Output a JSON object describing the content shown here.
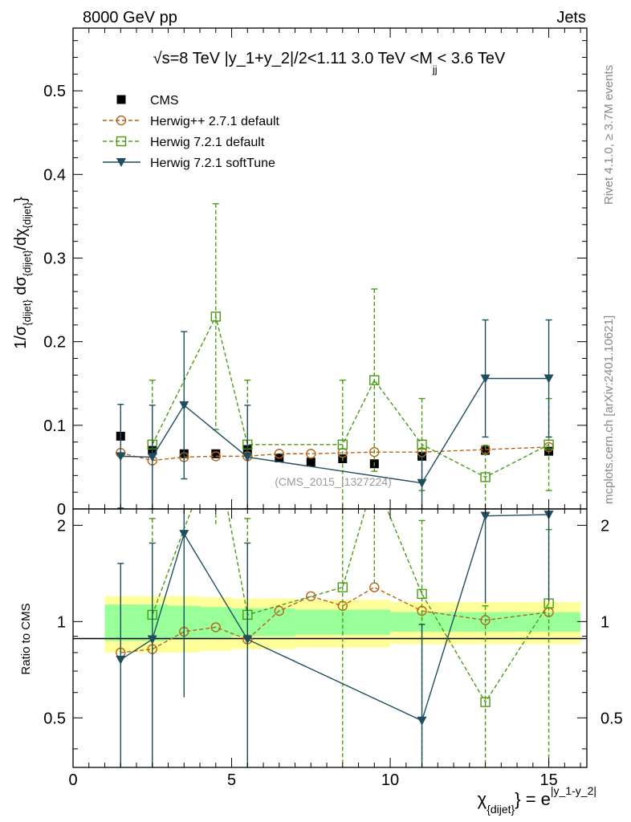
{
  "header": {
    "left": "8000 GeV pp",
    "right": "Jets",
    "side_rivet": "Rivet 4.1.0, ≥ 3.7M events",
    "side_mcplots": "mcplots.cern.ch [arXiv:2401.10621]"
  },
  "chart_data": {
    "type": "line",
    "title": "√s=8 TeV |y_1+y_2|/2<1.11 3.0 TeV <M",
    "title_sub": "jj",
    "title_suffix": "< 3.6 TeV",
    "analysis_label": "(CMS_2015_I1327224)",
    "ylabel_top": "1/σ{dijet} dσ{dijet}/dχ{dijet}",
    "ylabel_bottom": "Ratio to CMS",
    "xlabel": "χ{dijet} = e^|y_1-y_2|",
    "xlim": [
      0,
      16.2
    ],
    "ylim_top": [
      0,
      0.575
    ],
    "ylim_bottom": [
      0.35,
      2.25
    ],
    "xticks": [
      0,
      5,
      10,
      15
    ],
    "yticks_top": [
      0,
      0.1,
      0.2,
      0.3,
      0.4,
      0.5
    ],
    "yticks_bottom": [
      0.5,
      1,
      2
    ],
    "ytick_labels_bottom": [
      "0.5",
      "1",
      "2"
    ],
    "bins": [
      [
        1,
        2
      ],
      [
        2,
        3
      ],
      [
        3,
        4
      ],
      [
        4,
        5
      ],
      [
        5,
        6
      ],
      [
        6,
        7
      ],
      [
        7,
        8
      ],
      [
        8,
        9
      ],
      [
        9,
        10
      ],
      [
        10,
        12
      ],
      [
        12,
        14
      ],
      [
        14,
        16
      ]
    ],
    "band_inner": [
      0.13,
      0.13,
      0.12,
      0.11,
      0.1,
      0.1,
      0.09,
      0.09,
      0.09,
      0.07,
      0.07,
      0.07
    ],
    "band_outer": [
      0.2,
      0.2,
      0.2,
      0.19,
      0.18,
      0.18,
      0.17,
      0.17,
      0.17,
      0.15,
      0.15,
      0.15
    ],
    "series": [
      {
        "name": "CMS",
        "style": "data",
        "color": "#000000",
        "x": [
          1.5,
          2.5,
          3.5,
          4.5,
          5.5,
          6.5,
          7.5,
          8.5,
          9.5,
          11,
          13,
          15
        ],
        "y": [
          0.087,
          0.07,
          0.066,
          0.066,
          0.071,
          0.061,
          0.056,
          0.06,
          0.054,
          0.063,
          0.07,
          0.069
        ]
      },
      {
        "name": "Herwig++ 2.7.1 default",
        "style": "circle-dashed",
        "color": "#b5651d",
        "x": [
          1.5,
          2.5,
          3.5,
          4.5,
          5.5,
          6.5,
          7.5,
          8.5,
          9.5,
          11,
          13,
          15
        ],
        "y": [
          0.067,
          0.058,
          0.062,
          0.063,
          0.063,
          0.066,
          0.066,
          0.067,
          0.068,
          0.068,
          0.071,
          0.074
        ],
        "err": [
          0.003,
          0.003,
          0.003,
          0.003,
          0.003,
          0.003,
          0.003,
          0.003,
          0.003,
          0.003,
          0.003,
          0.003
        ],
        "ratio": [
          0.8,
          0.82,
          0.93,
          0.96,
          0.88,
          1.08,
          1.2,
          1.12,
          1.28,
          1.08,
          1.01,
          1.07
        ]
      },
      {
        "name": "Herwig 7.2.1 default",
        "style": "square-dashed",
        "color": "#4a9a13",
        "x": [
          1.5,
          2.5,
          3.5,
          4.5,
          5.5,
          6.5,
          7.5,
          8.5,
          9.5,
          11,
          13,
          15
        ],
        "y": [
          null,
          0.077,
          null,
          0.23,
          0.077,
          null,
          null,
          0.077,
          0.154,
          0.077,
          0.038,
          0.077
        ],
        "err": [
          null,
          0.077,
          null,
          0.135,
          0.077,
          null,
          null,
          0.077,
          0.109,
          0.055,
          0.038,
          0.055
        ],
        "ratio": [
          null,
          1.05,
          null,
          3.5,
          1.05,
          null,
          null,
          1.28,
          2.8,
          1.22,
          0.56,
          1.14
        ],
        "ratio_err": [
          null,
          1.05,
          null,
          1.5,
          1.05,
          null,
          null,
          1.3,
          1.5,
          0.85,
          0.56,
          0.8
        ],
        "ratio_path": [
          [
            2.5,
            1.05
          ],
          [
            3.5,
            1.95
          ],
          [
            4.5,
            3.5
          ],
          [
            5.5,
            1.05
          ],
          [
            8.5,
            1.28
          ],
          [
            9.5,
            2.8
          ],
          [
            11,
            1.22
          ],
          [
            13,
            0.56
          ],
          [
            15,
            1.14
          ]
        ]
      },
      {
        "name": "Herwig 7.2.1 softTune",
        "style": "triangle-solid",
        "color": "#1f4e5f",
        "x": [
          1.5,
          2.5,
          3.5,
          5.5,
          11,
          13,
          15
        ],
        "y": [
          0.063,
          0.062,
          0.124,
          0.062,
          0.031,
          0.156,
          0.156
        ],
        "err": [
          0.062,
          0.062,
          0.088,
          0.062,
          0.031,
          0.07,
          0.07
        ],
        "ratio": [
          0.76,
          0.88,
          1.88,
          0.88,
          0.49,
          2.14,
          2.16
        ],
        "ratio_err": [
          0.76,
          0.88,
          1.3,
          0.88,
          0.49,
          1.0,
          1.0
        ]
      }
    ]
  }
}
